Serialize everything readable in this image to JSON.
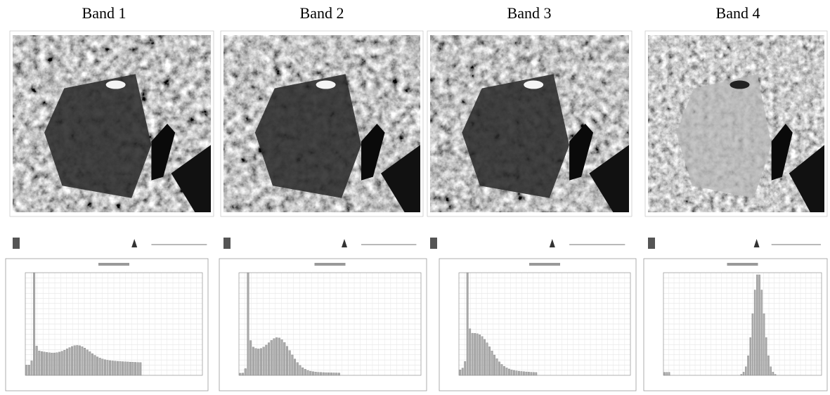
{
  "figure": {
    "bands": [
      {
        "title": "Band 1"
      },
      {
        "title": "Band 2"
      },
      {
        "title": "Band 3"
      },
      {
        "title": "Band 4"
      }
    ]
  }
}
